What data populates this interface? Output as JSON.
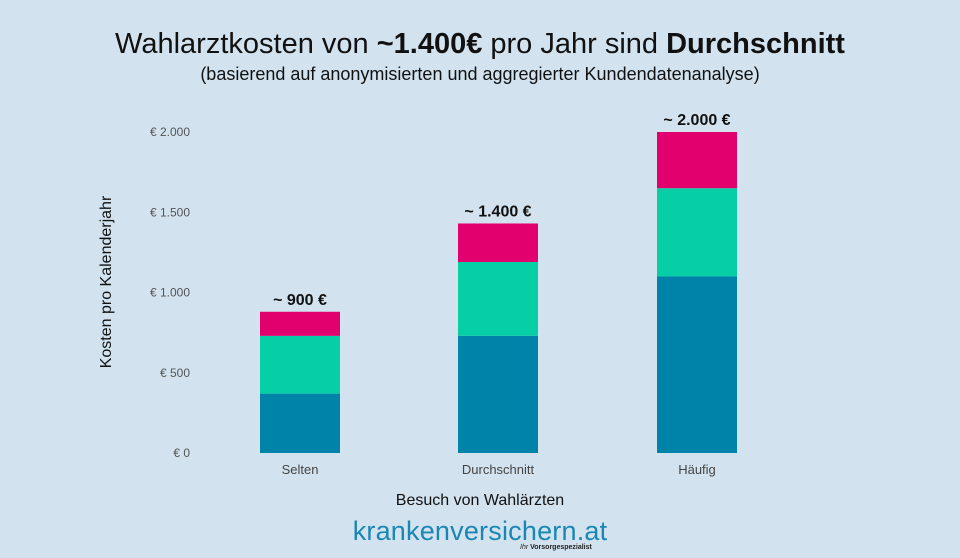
{
  "title": {
    "prefix": "Wahlarztkosten von ",
    "bold1": "~1.400€",
    "middle": " pro Jahr sind ",
    "bold2": "Durchschnitt"
  },
  "subtitle": "(basierend auf anonymisierten und aggregierter Kundendatenanalyse)",
  "brand": {
    "name": "krankenversichern.at",
    "tagline_by": "Ihr",
    "tagline": "Vorsorgespezialist"
  },
  "colors": {
    "background": "#d2e3ef",
    "segment_bottom": "#0083a8",
    "segment_middle": "#06cfa6",
    "segment_top": "#e1006e",
    "brand": "#1a86b3"
  },
  "chart_data": {
    "type": "bar",
    "stacked": true,
    "categories": [
      "Selten",
      "Durchschnitt",
      "Häufig"
    ],
    "series": [
      {
        "values": [
          370,
          730,
          1100
        ]
      },
      {
        "values": [
          360,
          460,
          550
        ]
      },
      {
        "values": [
          150,
          240,
          350
        ]
      }
    ],
    "totals_labels": [
      "~ 900 €",
      "~ 1.400 €",
      "~ 2.000 €"
    ],
    "xlabel": "Besuch von Wahlärzten",
    "ylabel": "Kosten pro Kalenderjahr",
    "ylim": [
      0,
      2000
    ],
    "yticks": [
      0,
      500,
      1000,
      1500,
      2000
    ],
    "ytick_labels": [
      "€ 0",
      "€ 500",
      "€ 1.000",
      "€ 1.500",
      "€ 2.000"
    ],
    "grid": false,
    "legend": "none"
  }
}
